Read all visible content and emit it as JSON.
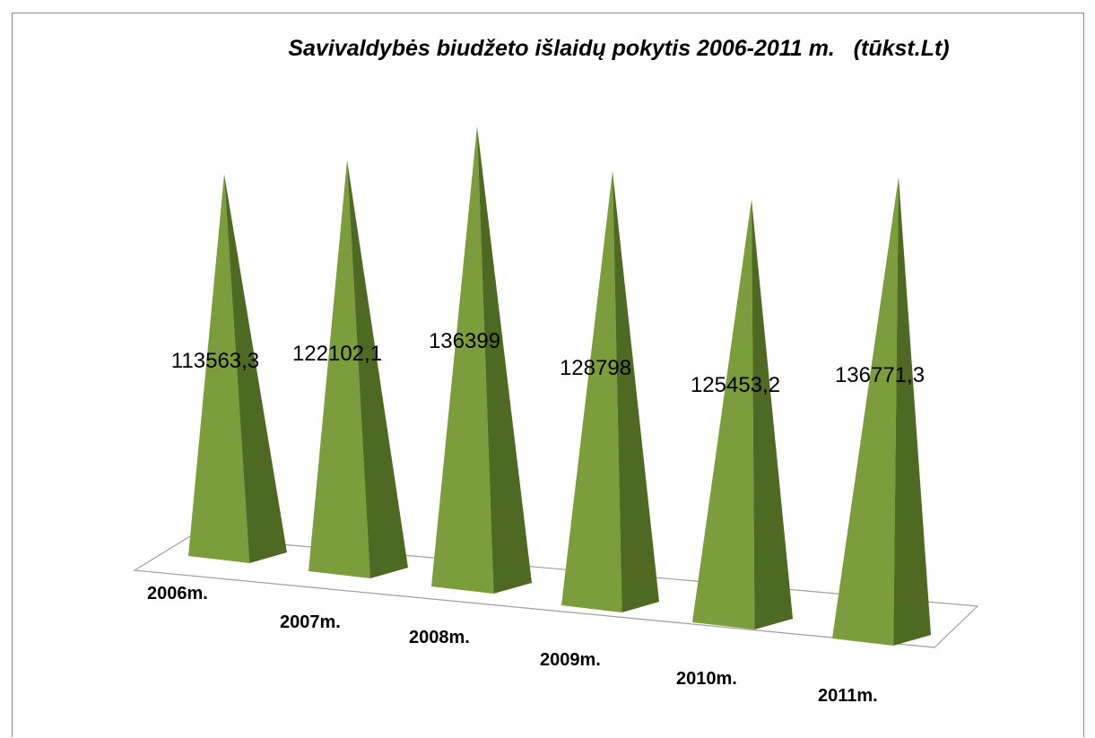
{
  "chart_data": {
    "type": "bar",
    "bar_shape": "pyramid",
    "title": "Savivaldybės biudžeto išlaidų pokytis 2006-2011 m.   (tūkst.Lt)",
    "categories": [
      "2006m.",
      "2007m.",
      "2008m.",
      "2009m.",
      "2010m.",
      "2011m."
    ],
    "values": [
      113563.3,
      122102.1,
      136399,
      128798,
      125453.2,
      136771.3
    ],
    "value_labels": [
      "113563,3",
      "122102,1",
      "136399",
      "128798",
      "125453,2",
      "136771,3"
    ],
    "xlabel": "",
    "ylabel": "",
    "grid": false,
    "legend": "none",
    "colors": {
      "front_face": "#7b9d3b",
      "side_face": "#4e6a22",
      "floor_line": "#a0a0a0",
      "frame": "#8c8c8c"
    }
  }
}
